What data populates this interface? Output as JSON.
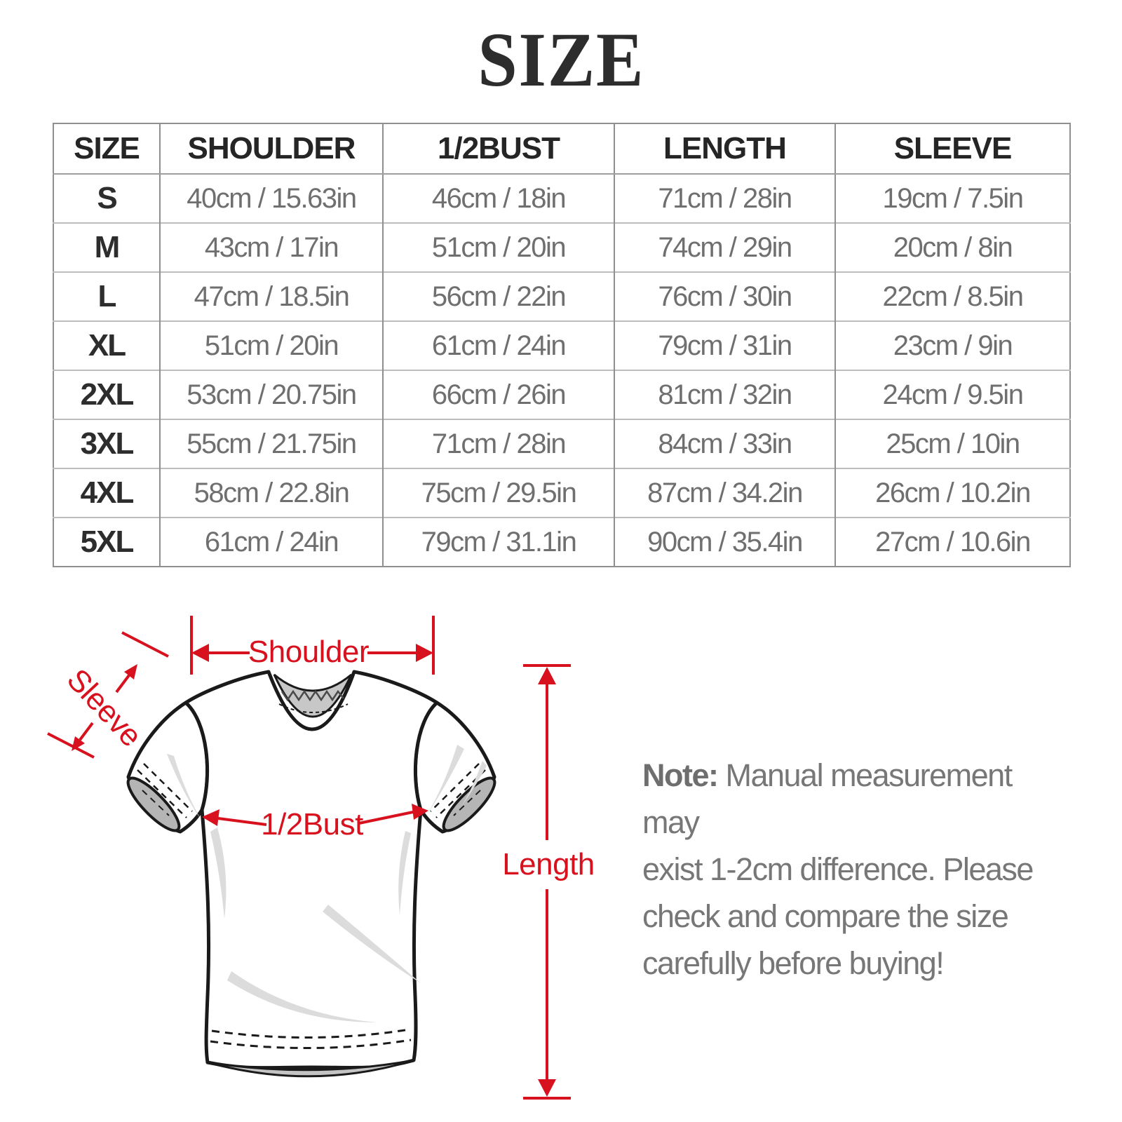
{
  "title": "SIZE",
  "chart_data": {
    "type": "table",
    "title": "SIZE",
    "columns": [
      "SIZE",
      "SHOULDER",
      "1/2BUST",
      "LENGTH",
      "SLEEVE"
    ],
    "rows": [
      [
        "S",
        "40cm / 15.63in",
        "46cm / 18in",
        "71cm / 28in",
        "19cm / 7.5in"
      ],
      [
        "M",
        "43cm / 17in",
        "51cm / 20in",
        "74cm / 29in",
        "20cm / 8in"
      ],
      [
        "L",
        "47cm / 18.5in",
        "56cm / 22in",
        "76cm / 30in",
        "22cm / 8.5in"
      ],
      [
        "XL",
        "51cm / 20in",
        "61cm / 24in",
        "79cm / 31in",
        "23cm / 9in"
      ],
      [
        "2XL",
        "53cm / 20.75in",
        "66cm / 26in",
        "81cm / 32in",
        "24cm / 9.5in"
      ],
      [
        "3XL",
        "55cm / 21.75in",
        "71cm / 28in",
        "84cm / 33in",
        "25cm / 10in"
      ],
      [
        "4XL",
        "58cm / 22.8in",
        "75cm / 29.5in",
        "87cm / 34.2in",
        "26cm / 10.2in"
      ],
      [
        "5XL",
        "61cm / 24in",
        "79cm / 31.1in",
        "90cm / 35.4in",
        "27cm / 10.6in"
      ]
    ]
  },
  "diagram": {
    "labels": {
      "shoulder": "Shoulder",
      "sleeve": "Sleeve",
      "bust": "1/2Bust",
      "length": "Length"
    },
    "accent_color": "#d8111e"
  },
  "note": {
    "prefix": "Note:",
    "line1": " Manual measurement may",
    "line2": "exist 1-2cm difference. Please",
    "line3": "check and compare the size",
    "line4": "carefully before buying!"
  }
}
